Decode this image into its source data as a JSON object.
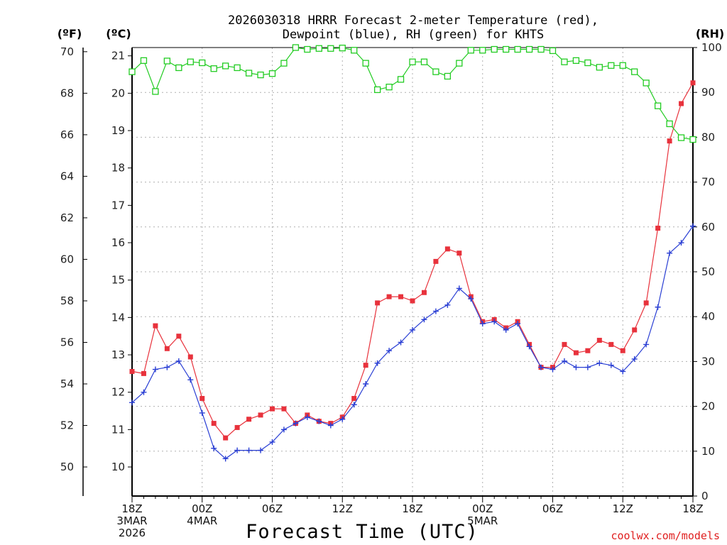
{
  "chart_data": {
    "type": "line",
    "title_line1": "2026030318 HRRR Forecast 2-meter Temperature (red),",
    "title_line2": "Dewpoint (blue), RH (green) for KHTS",
    "xlabel": "Forecast Time (UTC)",
    "credit": "coolwx.com/models",
    "unit_f": "(ºF)",
    "unit_c": "(ºC)",
    "unit_rh": "(RH)",
    "x_range_hours": [
      0,
      48
    ],
    "temp_f_range": [
      48.6,
      70.2
    ],
    "rh_range": [
      0,
      100
    ],
    "f_ticks": [
      "50",
      "52",
      "54",
      "56",
      "58",
      "60",
      "62",
      "64",
      "66",
      "68",
      "70"
    ],
    "c_ticks": [
      "10",
      "11",
      "12",
      "13",
      "14",
      "15",
      "16",
      "17",
      "18",
      "19",
      "20",
      "21"
    ],
    "rh_ticks": [
      "0",
      "10",
      "20",
      "30",
      "40",
      "50",
      "60",
      "70",
      "80",
      "90",
      "100"
    ],
    "x_ticks": [
      {
        "hour": 0,
        "lines": [
          "18Z",
          "3MAR",
          "2026"
        ]
      },
      {
        "hour": 6,
        "lines": [
          "00Z",
          "4MAR"
        ]
      },
      {
        "hour": 12,
        "lines": [
          "06Z"
        ]
      },
      {
        "hour": 18,
        "lines": [
          "12Z"
        ]
      },
      {
        "hour": 24,
        "lines": [
          "18Z"
        ]
      },
      {
        "hour": 30,
        "lines": [
          "00Z",
          "5MAR"
        ]
      },
      {
        "hour": 36,
        "lines": [
          "06Z"
        ]
      },
      {
        "hour": 42,
        "lines": [
          "12Z"
        ]
      },
      {
        "hour": 48,
        "lines": [
          "18Z"
        ]
      }
    ],
    "series": [
      {
        "name": "Temperature",
        "units": "F",
        "color": "#e8323c",
        "marker": "filled-square",
        "values": [
          54.6,
          54.5,
          56.8,
          55.7,
          56.3,
          55.3,
          53.3,
          52.1,
          51.4,
          51.9,
          52.3,
          52.5,
          52.8,
          52.8,
          52.1,
          52.5,
          52.2,
          52.1,
          52.4,
          53.3,
          54.9,
          57.9,
          58.2,
          58.2,
          58.0,
          58.4,
          59.9,
          60.5,
          60.3,
          58.2,
          57.0,
          57.1,
          56.7,
          57.0,
          55.9,
          54.8,
          54.8,
          55.9,
          55.5,
          55.6,
          56.1,
          55.9,
          55.6,
          56.6,
          57.9,
          61.5,
          65.7,
          67.5,
          68.5
        ]
      },
      {
        "name": "Dewpoint",
        "units": "F",
        "color": "#2a3fd4",
        "marker": "plus",
        "values": [
          53.1,
          53.6,
          54.7,
          54.8,
          55.1,
          54.2,
          52.6,
          50.9,
          50.4,
          50.8,
          50.8,
          50.8,
          51.2,
          51.8,
          52.1,
          52.4,
          52.2,
          52.0,
          52.3,
          53.0,
          54.0,
          55.0,
          55.6,
          56.0,
          56.6,
          57.1,
          57.5,
          57.8,
          58.6,
          58.1,
          56.9,
          57.0,
          56.6,
          56.9,
          55.8,
          54.8,
          54.7,
          55.1,
          54.8,
          54.8,
          55.0,
          54.9,
          54.6,
          55.2,
          55.9,
          57.7,
          60.3,
          60.8,
          61.6
        ]
      },
      {
        "name": "Relative Humidity",
        "units": "%",
        "color": "#22cc22",
        "marker": "open-square",
        "values": [
          94.6,
          97.1,
          90.2,
          97.0,
          95.5,
          96.8,
          96.6,
          95.3,
          95.9,
          95.5,
          94.3,
          93.9,
          94.2,
          96.5,
          100,
          99.6,
          99.8,
          99.8,
          99.9,
          99.4,
          96.5,
          90.6,
          91.2,
          92.9,
          96.8,
          96.8,
          94.6,
          93.6,
          96.5,
          99.4,
          99.4,
          99.6,
          99.6,
          99.6,
          99.6,
          99.6,
          99.3,
          96.8,
          97.1,
          96.6,
          95.6,
          96.0,
          96.0,
          94.6,
          92.1,
          87.0,
          83.0,
          79.9,
          79.5
        ]
      }
    ]
  }
}
